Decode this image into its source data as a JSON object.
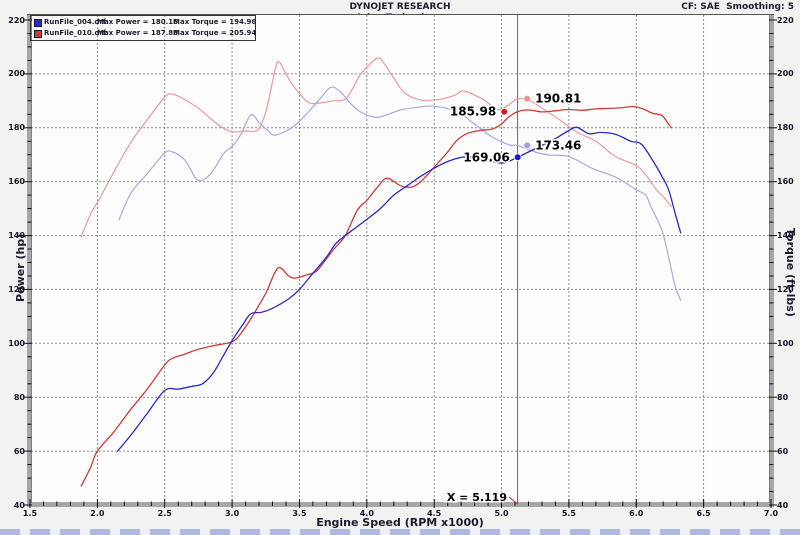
{
  "header": {
    "title": "DYNOJET RESEARCH",
    "subtitle": "Injen Technology",
    "correction": "CF: SAE  Smoothing: 5"
  },
  "chart_data": {
    "type": "line",
    "title": "DYNOJET RESEARCH",
    "subtitle": "Injen Technology",
    "correction_info": "CF: SAE  Smoothing: 5",
    "xlabel": "Engine Speed (RPM x1000)",
    "ylabel_left": "Power (hp)",
    "ylabel_right": "Torque (ft-lbs)",
    "x_range": [
      1.5,
      7.0
    ],
    "y_range": [
      40,
      220
    ],
    "grid": "dashed",
    "axes": {
      "x": {
        "ticks": [
          "1.5",
          "2.0",
          "2.5",
          "3.0",
          "3.5",
          "4.0",
          "4.5",
          "5.0",
          "5.5",
          "6.0",
          "6.5",
          "7.0"
        ],
        "minor_step": 0.1
      },
      "y": {
        "ticks": [
          "220",
          "200",
          "180",
          "160",
          "140",
          "120",
          "100",
          "80",
          "60",
          "40"
        ],
        "minor_step": 5
      }
    },
    "legend": {
      "rows": [
        {
          "file": "RunFile_004.drf",
          "power": "Max Power = 180.16",
          "torque": "Max Torque = 194.96",
          "color": "#2a2ac2"
        },
        {
          "file": "RunFile_010.drf",
          "power": "Max Power = 187.88",
          "torque": "Max Torque = 205.94",
          "color": "#cc3b3b"
        }
      ]
    },
    "cursor": {
      "x": 5.119,
      "label": "X = 5.119"
    },
    "markers": [
      {
        "label": "190.81",
        "x": 5.19,
        "value": 190.81,
        "color": "#ee8f8f",
        "side": "right",
        "series": "torque_red"
      },
      {
        "label": "185.98",
        "x": 5.02,
        "value": 185.98,
        "color": "#e01616",
        "side": "left",
        "series": "power_red"
      },
      {
        "label": "173.46",
        "x": 5.19,
        "value": 173.46,
        "color": "#9d9df0",
        "side": "right",
        "series": "torque_blue"
      },
      {
        "label": "169.06",
        "x": 5.12,
        "value": 169.06,
        "color": "#1616d8",
        "side": "left",
        "series": "power_blue"
      }
    ],
    "series": [
      {
        "id": "torque_red",
        "name": "RunFile_010 Torque",
        "color": "#e89b9b",
        "width": 1.2,
        "points": [
          [
            1.88,
            139.5
          ],
          [
            1.95,
            148
          ],
          [
            2.02,
            154
          ],
          [
            2.13,
            164.3
          ],
          [
            2.25,
            174.7
          ],
          [
            2.37,
            183
          ],
          [
            2.5,
            191.4
          ],
          [
            2.55,
            192.5
          ],
          [
            2.63,
            191
          ],
          [
            2.75,
            187.3
          ],
          [
            2.85,
            183
          ],
          [
            2.92,
            180.3
          ],
          [
            3.0,
            178.5
          ],
          [
            3.1,
            178.8
          ],
          [
            3.19,
            179.2
          ],
          [
            3.25,
            185.9
          ],
          [
            3.3,
            197
          ],
          [
            3.34,
            204.5
          ],
          [
            3.4,
            200
          ],
          [
            3.45,
            195.9
          ],
          [
            3.56,
            189.6
          ],
          [
            3.65,
            189.2
          ],
          [
            3.75,
            190
          ],
          [
            3.85,
            191
          ],
          [
            3.95,
            199.6
          ],
          [
            4.03,
            204
          ],
          [
            4.09,
            205.94
          ],
          [
            4.14,
            203
          ],
          [
            4.2,
            198.5
          ],
          [
            4.28,
            193
          ],
          [
            4.4,
            190.3
          ],
          [
            4.55,
            190.6
          ],
          [
            4.65,
            192
          ],
          [
            4.72,
            193.6
          ],
          [
            4.86,
            190.6
          ],
          [
            4.97,
            186.8
          ],
          [
            5.05,
            188.4
          ],
          [
            5.119,
            190.81
          ],
          [
            5.2,
            190.3
          ],
          [
            5.3,
            187.3
          ],
          [
            5.43,
            183
          ],
          [
            5.56,
            178.4
          ],
          [
            5.7,
            175
          ],
          [
            5.84,
            169.5
          ],
          [
            6.0,
            166
          ],
          [
            6.07,
            162.5
          ],
          [
            6.15,
            157
          ],
          [
            6.21,
            153.9
          ],
          [
            6.26,
            150.8
          ]
        ]
      },
      {
        "id": "torque_blue",
        "name": "RunFile_004 Torque",
        "color": "#a9a9e2",
        "width": 1.2,
        "points": [
          [
            2.16,
            145.8
          ],
          [
            2.25,
            155.8
          ],
          [
            2.37,
            163
          ],
          [
            2.5,
            170.6
          ],
          [
            2.56,
            171
          ],
          [
            2.65,
            168
          ],
          [
            2.73,
            161.3
          ],
          [
            2.78,
            160.6
          ],
          [
            2.85,
            163.5
          ],
          [
            2.94,
            170.6
          ],
          [
            3.0,
            173
          ],
          [
            3.07,
            178
          ],
          [
            3.14,
            184.8
          ],
          [
            3.2,
            182
          ],
          [
            3.26,
            179.2
          ],
          [
            3.32,
            177.3
          ],
          [
            3.45,
            180.3
          ],
          [
            3.55,
            185
          ],
          [
            3.64,
            190
          ],
          [
            3.73,
            194.96
          ],
          [
            3.8,
            193.5
          ],
          [
            3.88,
            189
          ],
          [
            3.95,
            186
          ],
          [
            4.05,
            184
          ],
          [
            4.12,
            184.3
          ],
          [
            4.25,
            186.6
          ],
          [
            4.39,
            187.7
          ],
          [
            4.5,
            188
          ],
          [
            4.67,
            185.9
          ],
          [
            4.81,
            181
          ],
          [
            4.93,
            176.6
          ],
          [
            5.06,
            173.6
          ],
          [
            5.119,
            173.46
          ],
          [
            5.25,
            171
          ],
          [
            5.35,
            169.9
          ],
          [
            5.5,
            169.3
          ],
          [
            5.67,
            165
          ],
          [
            5.85,
            161.6
          ],
          [
            6.0,
            157
          ],
          [
            6.07,
            155
          ],
          [
            6.11,
            150.6
          ],
          [
            6.19,
            142
          ],
          [
            6.24,
            132
          ],
          [
            6.29,
            121
          ],
          [
            6.33,
            116
          ]
        ]
      },
      {
        "id": "power_red",
        "name": "RunFile_010 Power",
        "color": "#cc3b3b",
        "width": 1.3,
        "points": [
          [
            1.88,
            47
          ],
          [
            1.95,
            54
          ],
          [
            2.0,
            60
          ],
          [
            2.12,
            67
          ],
          [
            2.24,
            75
          ],
          [
            2.37,
            83
          ],
          [
            2.5,
            92
          ],
          [
            2.56,
            94.5
          ],
          [
            2.65,
            96
          ],
          [
            2.73,
            97.5
          ],
          [
            2.85,
            99
          ],
          [
            3.0,
            100.6
          ],
          [
            3.07,
            104
          ],
          [
            3.15,
            110
          ],
          [
            3.25,
            118.6
          ],
          [
            3.34,
            127.9
          ],
          [
            3.42,
            125
          ],
          [
            3.47,
            124.2
          ],
          [
            3.56,
            125.5
          ],
          [
            3.62,
            126.5
          ],
          [
            3.68,
            130
          ],
          [
            3.75,
            134.6
          ],
          [
            3.84,
            140
          ],
          [
            3.93,
            149.5
          ],
          [
            4.0,
            153
          ],
          [
            4.08,
            158
          ],
          [
            4.15,
            161.3
          ],
          [
            4.25,
            158.5
          ],
          [
            4.33,
            158
          ],
          [
            4.4,
            160
          ],
          [
            4.5,
            165.4
          ],
          [
            4.6,
            171
          ],
          [
            4.67,
            175.4
          ],
          [
            4.75,
            178
          ],
          [
            4.85,
            179.1
          ],
          [
            4.93,
            179.5
          ],
          [
            5.0,
            181.4
          ],
          [
            5.05,
            183.9
          ],
          [
            5.119,
            185.98
          ],
          [
            5.2,
            186.6
          ],
          [
            5.3,
            185.9
          ],
          [
            5.4,
            186.3
          ],
          [
            5.5,
            186.8
          ],
          [
            5.6,
            186.5
          ],
          [
            5.7,
            187
          ],
          [
            5.8,
            187.2
          ],
          [
            5.9,
            187.5
          ],
          [
            5.98,
            187.88
          ],
          [
            6.05,
            187
          ],
          [
            6.12,
            185.4
          ],
          [
            6.19,
            184.6
          ],
          [
            6.23,
            182
          ],
          [
            6.26,
            180
          ]
        ]
      },
      {
        "id": "power_blue",
        "name": "RunFile_004 Power",
        "color": "#2a2ac2",
        "width": 1.3,
        "points": [
          [
            2.15,
            60
          ],
          [
            2.25,
            66
          ],
          [
            2.37,
            74
          ],
          [
            2.5,
            82.5
          ],
          [
            2.6,
            83
          ],
          [
            2.7,
            84
          ],
          [
            2.78,
            85
          ],
          [
            2.86,
            89
          ],
          [
            2.93,
            95
          ],
          [
            3.0,
            101
          ],
          [
            3.08,
            107
          ],
          [
            3.14,
            111
          ],
          [
            3.22,
            111.5
          ],
          [
            3.3,
            113
          ],
          [
            3.42,
            116.5
          ],
          [
            3.5,
            120
          ],
          [
            3.6,
            126
          ],
          [
            3.7,
            132
          ],
          [
            3.77,
            137
          ],
          [
            3.84,
            140
          ],
          [
            3.92,
            143
          ],
          [
            4.0,
            146
          ],
          [
            4.1,
            150
          ],
          [
            4.2,
            155
          ],
          [
            4.3,
            158.5
          ],
          [
            4.4,
            162
          ],
          [
            4.5,
            165
          ],
          [
            4.6,
            167.5
          ],
          [
            4.7,
            169
          ],
          [
            4.78,
            169.2
          ],
          [
            4.86,
            168.8
          ],
          [
            4.94,
            167.4
          ],
          [
            5.02,
            167
          ],
          [
            5.119,
            169.06
          ],
          [
            5.2,
            171
          ],
          [
            5.3,
            173.5
          ],
          [
            5.4,
            176
          ],
          [
            5.5,
            179
          ],
          [
            5.56,
            180.16
          ],
          [
            5.65,
            177.8
          ],
          [
            5.74,
            178.3
          ],
          [
            5.85,
            177.5
          ],
          [
            5.96,
            175
          ],
          [
            6.04,
            173.8
          ],
          [
            6.14,
            166.4
          ],
          [
            6.19,
            162
          ],
          [
            6.24,
            157
          ],
          [
            6.29,
            148
          ],
          [
            6.33,
            141
          ]
        ]
      }
    ]
  }
}
